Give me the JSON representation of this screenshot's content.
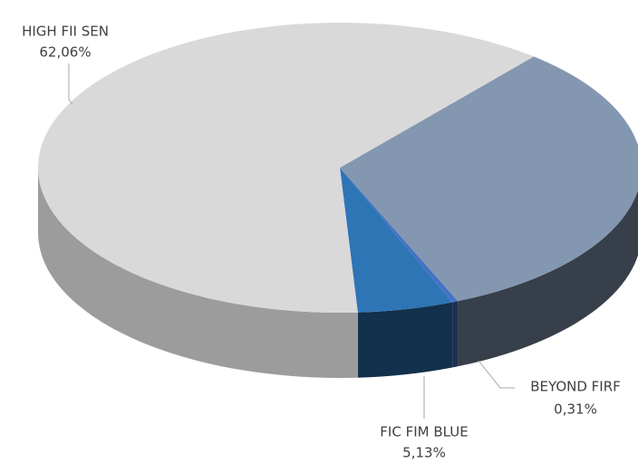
{
  "chart_data": {
    "type": "pie",
    "categories": [
      null,
      "BEYOND FIRF",
      "FIC FIM BLUE",
      "HIGH FII SEN"
    ],
    "values": [
      32.5,
      0.31,
      5.13,
      62.06
    ],
    "value_labels": [
      null,
      "0,31%",
      "5,13%",
      "62,06%"
    ],
    "colors": [
      "#8497b0",
      "#4472c4",
      "#2e75b6",
      "#d9d9d9"
    ]
  }
}
